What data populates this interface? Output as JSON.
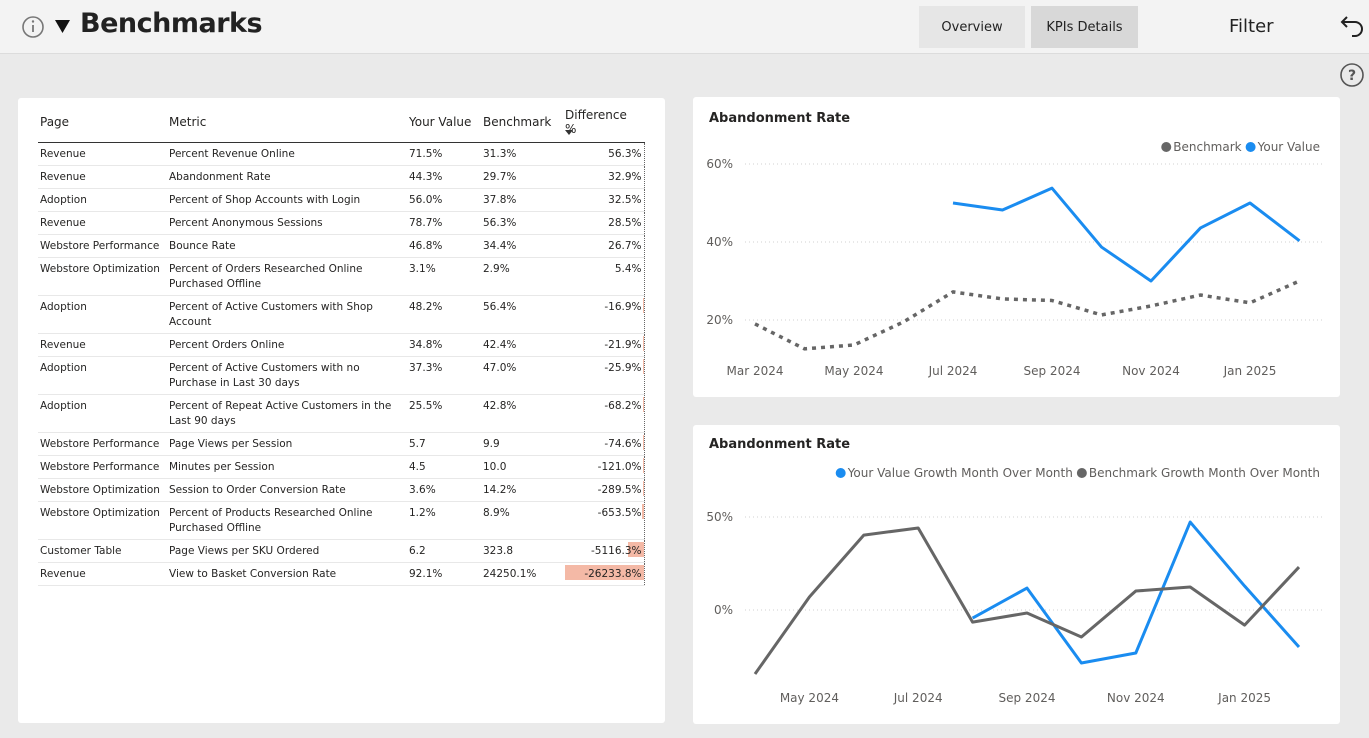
{
  "header": {
    "title": "Benchmarks",
    "tabs": [
      "Overview",
      "KPIs Details"
    ],
    "filter": "Filter"
  },
  "table": {
    "columns": [
      "Page",
      "Metric",
      "Your Value",
      "Benchmark",
      "Difference %"
    ],
    "rows": [
      [
        "Revenue",
        "Percent Revenue Online",
        "71.5%",
        "31.3%",
        "56.3%"
      ],
      [
        "Revenue",
        "Abandonment Rate",
        "44.3%",
        "29.7%",
        "32.9%"
      ],
      [
        "Adoption",
        "Percent of Shop Accounts with Login",
        "56.0%",
        "37.8%",
        "32.5%"
      ],
      [
        "Revenue",
        "Percent Anonymous Sessions",
        "78.7%",
        "56.3%",
        "28.5%"
      ],
      [
        "Webstore Performance",
        "Bounce Rate",
        "46.8%",
        "34.4%",
        "26.7%"
      ],
      [
        "Webstore Optimization",
        "Percent of Orders Researched Online Purchased Offline",
        "3.1%",
        "2.9%",
        "5.4%"
      ],
      [
        "Adoption",
        "Percent of Active Customers with Shop Account",
        "48.2%",
        "56.4%",
        "-16.9%"
      ],
      [
        "Revenue",
        "Percent Orders Online",
        "34.8%",
        "42.4%",
        "-21.9%"
      ],
      [
        "Adoption",
        "Percent of Active Customers with no Purchase in Last 30 days",
        "37.3%",
        "47.0%",
        "-25.9%"
      ],
      [
        "Adoption",
        "Percent of Repeat Active Customers in the Last 90 days",
        "25.5%",
        "42.8%",
        "-68.2%"
      ],
      [
        "Webstore Performance",
        "Page Views per Session",
        "5.7",
        "9.9",
        "-74.6%"
      ],
      [
        "Webstore Performance",
        "Minutes per Session",
        "4.5",
        "10.0",
        "-121.0%"
      ],
      [
        "Webstore Optimization",
        "Session to Order Conversion Rate",
        "3.6%",
        "14.2%",
        "-289.5%"
      ],
      [
        "Webstore Optimization",
        "Percent of Products Researched Online Purchased Offline",
        "1.2%",
        "8.9%",
        "-653.5%"
      ],
      [
        "Customer Table",
        "Page Views per SKU Ordered",
        "6.2",
        "323.8",
        "-5116.3%"
      ],
      [
        "Revenue",
        "View to Basket Conversion Rate",
        "92.1%",
        "24250.1%",
        "-26233.8%"
      ]
    ],
    "bar_color": "#f4b9a6"
  },
  "chart_data": [
    {
      "type": "line",
      "title": "Abandonment Rate",
      "categories": [
        "Mar 2024",
        null,
        "May 2024",
        null,
        "Jul 2024",
        null,
        "Sep 2024",
        null,
        "Nov 2024",
        null,
        "Jan 2025",
        null
      ],
      "series": [
        {
          "name": "Benchmark",
          "color": "#666666",
          "dash": "dotted",
          "values": [
            19,
            12.6,
            13.6,
            19.5,
            27.2,
            25.4,
            25,
            21.3,
            23.6,
            26.4,
            24.4,
            30
          ]
        },
        {
          "name": "Your Value",
          "color": "#1a8cf0",
          "values": [
            null,
            null,
            null,
            null,
            50,
            48.2,
            53.8,
            38.7,
            30,
            43.6,
            50,
            40.3
          ]
        }
      ],
      "ylim": [
        10,
        65
      ],
      "yticks": [
        {
          "value": 20,
          "label": "20%"
        },
        {
          "value": 40,
          "label": "40%"
        },
        {
          "value": 60,
          "label": "60%"
        }
      ],
      "grid": true,
      "legend": "top-right"
    },
    {
      "type": "line",
      "title": "Abandonment Rate",
      "categories": [
        null,
        "May 2024",
        null,
        "Jul 2024",
        null,
        "Sep 2024",
        null,
        "Nov 2024",
        null,
        "Jan 2025",
        null
      ],
      "series": [
        {
          "name": "Your Value Growth Month Over Month",
          "color": "#1a8cf0",
          "values": [
            null,
            null,
            null,
            null,
            -4.3,
            11.8,
            -28.5,
            -23.1,
            47.3,
            12.9,
            -19.9
          ]
        },
        {
          "name": "Benchmark Growth Month Over Month",
          "color": "#666666",
          "values": [
            -34.4,
            7,
            40.3,
            44.1,
            -6.5,
            -1.6,
            -14.5,
            10.2,
            12.4,
            -8.1,
            23.1
          ]
        }
      ],
      "ylim": [
        -38,
        59
      ],
      "yticks": [
        {
          "value": 0,
          "label": "0%"
        },
        {
          "value": 50,
          "label": "50%"
        }
      ],
      "grid": true,
      "legend": "top-right"
    }
  ]
}
